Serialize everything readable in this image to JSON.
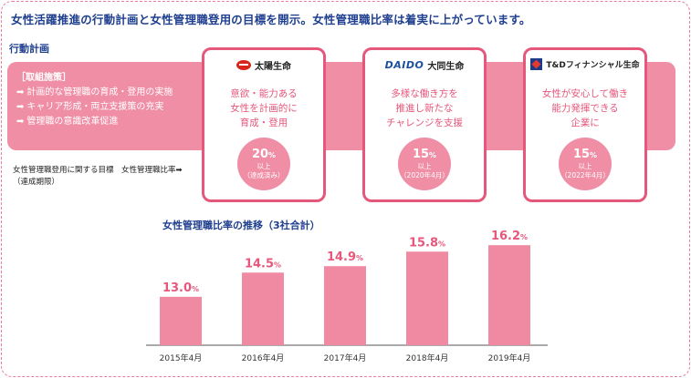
{
  "headline": "女性活躍推進の行動計画と女性管理職登用の目標を開示。女性管理職比率は着実に上がっています。",
  "section_label": "行動計画",
  "measures": {
    "title": "［取組施策］",
    "items": [
      "計画的な管理職の育成・登用の実施",
      "キャリア形成・両立支援策の充実",
      "管理職の意識改革促進"
    ]
  },
  "goal_caption": {
    "line1": "女性管理職登用に関する目標　女性管理職比率➡",
    "line2": "（達成期限）"
  },
  "companies": [
    {
      "name": "太陽生命",
      "mark_icon": "taiyo-logo-icon",
      "desc": [
        "意欲・能力ある",
        "女性を計画的に",
        "育成・登用"
      ],
      "goal_value": "20",
      "goal_unit": "%",
      "goal_above": "以上",
      "goal_deadline": "（達成済み）"
    },
    {
      "name": "大同生命",
      "mark_text": "DAIDO",
      "mark_icon": "daido-logo-icon",
      "desc": [
        "多様な働き方を",
        "推進し新たな",
        "チャレンジを支援"
      ],
      "goal_value": "15",
      "goal_unit": "%",
      "goal_above": "以上",
      "goal_deadline": "（2020年4月）"
    },
    {
      "name": "T&Dフィナンシャル生命",
      "mark_icon": "td-logo-icon",
      "desc": [
        "女性が安心して働き",
        "能力発揮できる",
        "企業に"
      ],
      "goal_value": "15",
      "goal_unit": "%",
      "goal_above": "以上",
      "goal_deadline": "（2022年4月）"
    }
  ],
  "colors": {
    "accent": "#e5587c",
    "band": "#ef8ea5",
    "bar": "#f08aa2",
    "navy": "#1f3f8f"
  },
  "chart_data": {
    "type": "bar",
    "title": "女性管理職比率の推移（3社合計）",
    "categories": [
      "2015年4月",
      "2016年4月",
      "2017年4月",
      "2018年4月",
      "2019年4月"
    ],
    "values": [
      13.0,
      14.5,
      14.9,
      15.8,
      16.2
    ],
    "labels": [
      "13.0",
      "14.5",
      "14.9",
      "15.8",
      "16.2"
    ],
    "unit": "%",
    "ylim": [
      10,
      17
    ],
    "xlabel": "",
    "ylabel": ""
  }
}
